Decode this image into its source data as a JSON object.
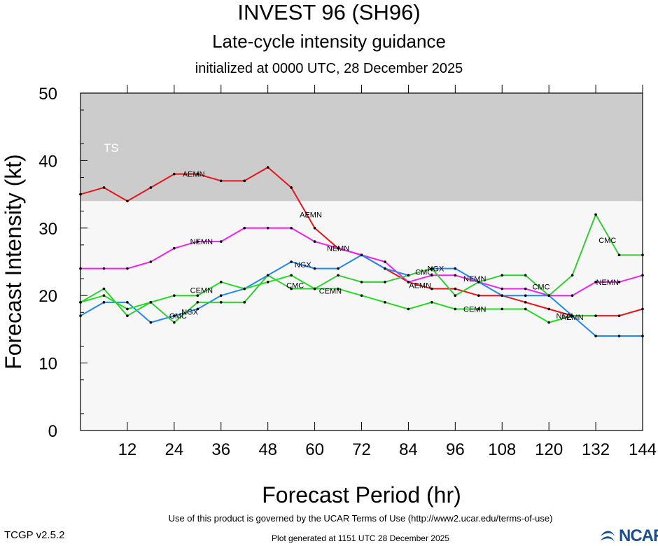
{
  "title": "INVEST 96 (SH96)",
  "subtitle": "Late-cycle intensity guidance",
  "init_line": "initialized at 0000 UTC, 28 December 2025",
  "footer": {
    "terms": "Use of this product is governed by the UCAR Terms of Use (http://www2.ucar.edu/terms-of-use)",
    "version": "TCGP v2.5.2",
    "generated": "Plot generated at 1151 UTC   28 December 2025",
    "logo": "NCAR"
  },
  "colors": {
    "background": "#f7f7f7",
    "ts_band": "#cccccc",
    "AEMN": "#e8141a",
    "NEMN": "#ee22ee",
    "NGX": "#2288ee",
    "CMC": "#33cc33",
    "CEMN": "#22dd22"
  },
  "chart_data": {
    "type": "line",
    "xlabel": "Forecast Period (hr)",
    "ylabel": "Forecast Intensity (kt)",
    "xlim": [
      0,
      144
    ],
    "ylim": [
      0,
      50
    ],
    "xticks": [
      12,
      24,
      36,
      48,
      60,
      72,
      84,
      96,
      108,
      120,
      132,
      144
    ],
    "yticks": [
      0,
      10,
      20,
      30,
      40,
      50
    ],
    "bands": [
      {
        "label": "TS",
        "from": 34,
        "to": 50
      }
    ],
    "series": [
      {
        "name": "AEMN",
        "x": [
          0,
          6,
          12,
          18,
          24,
          30,
          36,
          42,
          48,
          54,
          60,
          66,
          72,
          78,
          84,
          90,
          96,
          102,
          108,
          114,
          120,
          126,
          132,
          138,
          144
        ],
        "y": [
          35,
          36,
          34,
          36,
          38,
          38,
          37,
          37,
          39,
          36,
          30,
          27,
          26,
          24,
          22,
          21,
          21,
          20,
          20,
          19,
          18,
          17,
          17,
          17,
          18
        ]
      },
      {
        "name": "NEMN",
        "x": [
          0,
          6,
          12,
          18,
          24,
          30,
          36,
          42,
          48,
          54,
          60,
          66,
          72,
          78,
          84,
          90,
          96,
          102,
          108,
          114,
          120,
          126,
          132,
          138,
          144
        ],
        "y": [
          24,
          24,
          24,
          25,
          27,
          28,
          28,
          30,
          30,
          30,
          28,
          27,
          26,
          25,
          22,
          23,
          23,
          22,
          21,
          21,
          20,
          20,
          22,
          22,
          23
        ]
      },
      {
        "name": "NGX",
        "x": [
          0,
          6,
          12,
          18,
          24,
          30,
          36,
          42,
          48,
          54,
          60,
          66,
          72,
          78,
          84,
          90,
          96,
          102,
          108,
          114,
          120,
          126,
          132,
          138,
          144
        ],
        "y": [
          17,
          19,
          19,
          16,
          17,
          18,
          20,
          21,
          23,
          25,
          24,
          24,
          26,
          24,
          23,
          24,
          24,
          22,
          20,
          20,
          20,
          17,
          14,
          14,
          14
        ]
      },
      {
        "name": "CMC",
        "x": [
          0,
          6,
          12,
          18,
          24,
          30,
          36,
          42,
          48,
          54,
          60,
          66,
          72,
          78,
          84,
          90,
          96,
          102,
          108,
          114,
          120,
          126,
          132,
          138,
          144
        ],
        "y": [
          19,
          21,
          17,
          19,
          16,
          19,
          19,
          19,
          23,
          21,
          21,
          23,
          22,
          22,
          23,
          24,
          20,
          22,
          23,
          23,
          20,
          23,
          32,
          26,
          26
        ]
      },
      {
        "name": "CEMN",
        "x": [
          0,
          6,
          12,
          18,
          24,
          30,
          36,
          42,
          48,
          54,
          60,
          66,
          72,
          78,
          84,
          90,
          96,
          102,
          108,
          114,
          120,
          126,
          132
        ],
        "y": [
          19,
          20,
          18,
          19,
          20,
          20,
          22,
          21,
          22,
          23,
          21,
          21,
          20,
          19,
          18,
          19,
          18,
          18,
          18,
          18,
          16,
          17,
          17
        ]
      }
    ],
    "series_labels": [
      {
        "series": "AEMN",
        "text": "AEMN",
        "x": 29,
        "y": 38
      },
      {
        "series": "AEMN",
        "text": "AEMN",
        "x": 59,
        "y": 32
      },
      {
        "series": "AEMN",
        "text": "AEMN",
        "x": 87,
        "y": 21.5
      },
      {
        "series": "NEMN",
        "text": "NEMN",
        "x": 31,
        "y": 28
      },
      {
        "series": "NEMN",
        "text": "NEMN",
        "x": 66,
        "y": 27
      },
      {
        "series": "NEMN",
        "text": "NEMN",
        "x": 101,
        "y": 22.5
      },
      {
        "series": "NEMN",
        "text": "NEMN",
        "x": 135,
        "y": 22
      },
      {
        "series": "NGX",
        "text": "NGX",
        "x": 28,
        "y": 17.6
      },
      {
        "series": "NGX",
        "text": "NGX",
        "x": 57,
        "y": 24.6
      },
      {
        "series": "NGX",
        "text": "NGX",
        "x": 91,
        "y": 24
      },
      {
        "series": "NGX",
        "text": "NGX",
        "x": 124,
        "y": 17
      },
      {
        "series": "CMC",
        "text": "CMC",
        "x": 25,
        "y": 17
      },
      {
        "series": "CMC",
        "text": "CMC",
        "x": 55,
        "y": 21.5
      },
      {
        "series": "CMC",
        "text": "CMC",
        "x": 88,
        "y": 23.5
      },
      {
        "series": "CMC",
        "text": "CMC",
        "x": 118,
        "y": 21.3
      },
      {
        "series": "CMC",
        "text": "CMC",
        "x": 135,
        "y": 28.2
      },
      {
        "series": "CEMN",
        "text": "CEMN",
        "x": 31,
        "y": 20.8
      },
      {
        "series": "CEMN",
        "text": "CEMN",
        "x": 64,
        "y": 20.7
      },
      {
        "series": "CEMN",
        "text": "CEMN",
        "x": 101,
        "y": 18
      },
      {
        "series": "AEMN",
        "text": "AEMN",
        "x": 126,
        "y": 16.8
      }
    ]
  }
}
